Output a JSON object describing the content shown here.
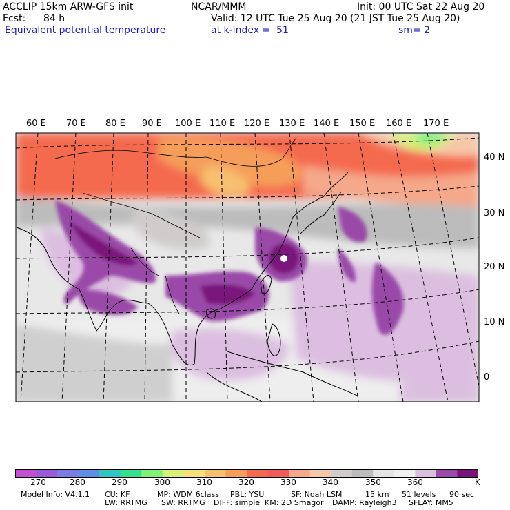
{
  "header": {
    "model": "ACCLIP 15km ARW-GFS init",
    "org": "NCAR/MMM",
    "init": "Init: 00 UTC Sat 22 Aug 20",
    "fcst_label": "Fcst:",
    "fcst_value": "84 h",
    "valid": "Valid: 12 UTC Tue 25 Aug 20 (21 JST Tue 25 Aug 20)",
    "field": "Equivalent potential temperature",
    "level": "at k-index =  51",
    "smooth": "sm= 2"
  },
  "map": {
    "lon_labels": [
      "60 E",
      "70 E",
      "80 E",
      "90 E",
      "100 E",
      "110 E",
      "120 E",
      "130 E",
      "140 E",
      "150 E",
      "160 E",
      "170 E"
    ],
    "lat_labels": [
      "40 N",
      "30 N",
      "20 N",
      "10 N",
      "0"
    ]
  },
  "colorbar": {
    "colors": [
      "#c54fd2",
      "#9b5ad8",
      "#7b7be0",
      "#5d8fe6",
      "#2fc6c2",
      "#33e08e",
      "#7ff07a",
      "#d8f07a",
      "#f5e07a",
      "#f7c06e",
      "#f59e5a",
      "#f46a50",
      "#f35a5a",
      "#f5a88a",
      "#f5c8a8",
      "#d0cccc",
      "#bcbcbc",
      "#e4e4e4",
      "#f0f0f0",
      "#dcbfe0",
      "#9a4aa8",
      "#7a127c"
    ],
    "tick_labels": [
      "270",
      "280",
      "290",
      "300",
      "310",
      "320",
      "330",
      "340",
      "350",
      "360"
    ],
    "unit": "K"
  },
  "footer": {
    "line1": [
      "Model Info: V4.1.1",
      "CU: KF",
      "MP: WDM 6class",
      "PBL: YSU",
      "SF: Noah LSM",
      "15 km",
      "51 levels",
      "90 sec"
    ],
    "line2": [
      "LW: RRTMG",
      "SW: RRTMG",
      "DIFF: simple",
      "KM: 2D Smagor",
      "DAMP: Rayleigh3",
      "SFLAY: MM5"
    ]
  }
}
